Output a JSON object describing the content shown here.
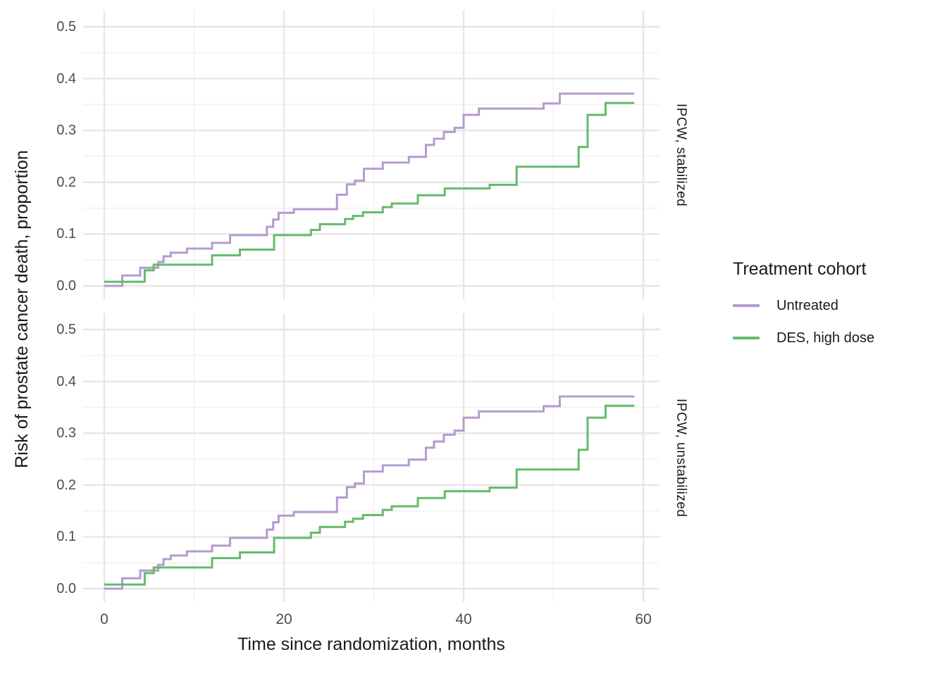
{
  "chart_data": {
    "type": "line",
    "line_style": "step-after",
    "xlabel": "Time since randomization, months",
    "ylabel": "Risk of prostate cancer death, proportion",
    "xlim": [
      0,
      60
    ],
    "ylim": [
      0.0,
      0.5
    ],
    "x_ticks": [
      0,
      20,
      40,
      60
    ],
    "x_tick_labels": [
      "0",
      "20",
      "40",
      "60"
    ],
    "x_minor_ticks": [
      10,
      30,
      50
    ],
    "y_ticks": [
      0.0,
      0.1,
      0.2,
      0.3,
      0.4,
      0.5
    ],
    "y_tick_labels": [
      "0.0",
      "0.1",
      "0.2",
      "0.3",
      "0.4",
      "0.5"
    ],
    "y_minor_ticks": [
      0.05,
      0.15,
      0.25,
      0.35,
      0.45
    ],
    "grid": "on",
    "facets": [
      "IPCW, stabilized",
      "IPCW, unstabilized"
    ],
    "legend_title": "Treatment cohort",
    "legend_position": "right",
    "series": [
      {
        "name": "Untreated",
        "color": "#b49bd1",
        "points": [
          [
            0,
            0.0
          ],
          [
            2,
            0.02
          ],
          [
            4,
            0.035
          ],
          [
            6,
            0.046
          ],
          [
            6.6,
            0.057
          ],
          [
            7.4,
            0.064
          ],
          [
            9.2,
            0.072
          ],
          [
            12,
            0.083
          ],
          [
            14,
            0.098
          ],
          [
            18.1,
            0.114
          ],
          [
            18.8,
            0.128
          ],
          [
            19.4,
            0.141
          ],
          [
            21.1,
            0.148
          ],
          [
            25.9,
            0.176
          ],
          [
            27,
            0.196
          ],
          [
            27.9,
            0.203
          ],
          [
            28.9,
            0.226
          ],
          [
            31,
            0.238
          ],
          [
            33.9,
            0.249
          ],
          [
            35.8,
            0.272
          ],
          [
            36.7,
            0.284
          ],
          [
            37.8,
            0.297
          ],
          [
            39,
            0.305
          ],
          [
            40,
            0.33
          ],
          [
            41.7,
            0.342
          ],
          [
            48.9,
            0.352
          ],
          [
            50.7,
            0.371
          ],
          [
            59,
            0.371
          ]
        ]
      },
      {
        "name": "DES, high dose",
        "color": "#64bb6b",
        "points": [
          [
            0,
            0.008
          ],
          [
            4.5,
            0.03
          ],
          [
            5.5,
            0.041
          ],
          [
            12,
            0.059
          ],
          [
            15.1,
            0.07
          ],
          [
            18.9,
            0.098
          ],
          [
            23,
            0.108
          ],
          [
            24,
            0.119
          ],
          [
            26.8,
            0.129
          ],
          [
            27.7,
            0.135
          ],
          [
            28.8,
            0.142
          ],
          [
            31,
            0.152
          ],
          [
            32,
            0.159
          ],
          [
            34.9,
            0.175
          ],
          [
            37.9,
            0.188
          ],
          [
            42.9,
            0.195
          ],
          [
            45.9,
            0.23
          ],
          [
            52.8,
            0.268
          ],
          [
            53.8,
            0.33
          ],
          [
            55.8,
            0.353
          ],
          [
            59,
            0.353
          ]
        ]
      }
    ],
    "colors": {
      "background": "#ffffff",
      "grid_major": "#e6e6e6",
      "grid_minor": "#f0f0f0",
      "tick_text": "#4d4d4d",
      "title_text": "#1a1a1a"
    }
  }
}
